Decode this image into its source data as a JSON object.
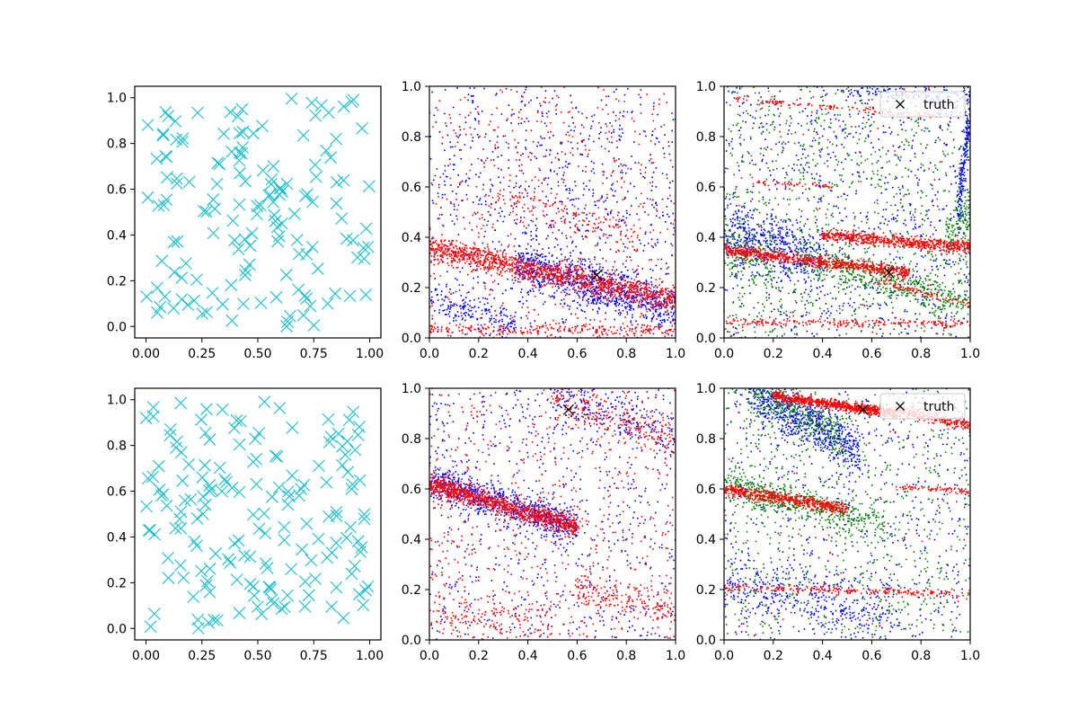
{
  "chart_data": [
    {
      "type": "scatter",
      "row": 0,
      "col": 0,
      "xlim": [
        -0.05,
        1.05
      ],
      "ylim": [
        -0.05,
        1.05
      ],
      "xticks": [
        "0.00",
        "0.25",
        "0.50",
        "0.75",
        "1.00"
      ],
      "yticks": [
        "0.0",
        "0.2",
        "0.4",
        "0.6",
        "0.8",
        "1.0"
      ],
      "xtick_values": [
        0,
        0.25,
        0.5,
        0.75,
        1.0
      ],
      "ytick_values": [
        0,
        0.2,
        0.4,
        0.6,
        0.8,
        1.0
      ],
      "series": [
        {
          "marker": "x",
          "color": "#17becf",
          "random_uniform": true,
          "count": 150,
          "seed": 11
        }
      ]
    },
    {
      "type": "scatter",
      "row": 0,
      "col": 1,
      "xlim": [
        0,
        1
      ],
      "ylim": [
        0,
        1
      ],
      "xticks": [
        "0.0",
        "0.2",
        "0.4",
        "0.6",
        "0.8",
        "1.0"
      ],
      "yticks": [
        "0.0",
        "0.2",
        "0.4",
        "0.6",
        "0.8",
        "1.0"
      ],
      "xtick_values": [
        0,
        0.2,
        0.4,
        0.6,
        0.8,
        1.0
      ],
      "ytick_values": [
        0,
        0.2,
        0.4,
        0.6,
        0.8,
        1.0
      ],
      "truth": {
        "x": 0.68,
        "y": 0.25,
        "label": ""
      },
      "series": [
        {
          "marker": "dot",
          "color": "#0000ff",
          "seed": 21,
          "background": 700,
          "bands": [
            {
              "x0": 0.35,
              "x1": 1.0,
              "y0": 0.3,
              "y1": 0.12,
              "width": 0.045,
              "count": 900
            },
            {
              "x0": 0.0,
              "x1": 0.35,
              "y0": 0.17,
              "y1": 0.04,
              "width": 0.035,
              "count": 180
            },
            {
              "x0": 0.0,
              "x1": 1.0,
              "y0": 0.6,
              "y1": 0.55,
              "width": 0.12,
              "count": 150
            }
          ]
        },
        {
          "marker": "dot",
          "color": "#ff0000",
          "seed": 22,
          "background": 500,
          "bands": [
            {
              "x0": 0.0,
              "x1": 1.0,
              "y0": 0.36,
              "y1": 0.15,
              "width": 0.025,
              "count": 1300
            },
            {
              "x0": 0.0,
              "x1": 1.0,
              "y0": 0.03,
              "y1": 0.03,
              "width": 0.012,
              "count": 250
            },
            {
              "x0": 0.25,
              "x1": 0.85,
              "y0": 0.58,
              "y1": 0.4,
              "width": 0.04,
              "count": 150
            }
          ]
        }
      ]
    },
    {
      "type": "scatter",
      "row": 0,
      "col": 2,
      "xlim": [
        0,
        1
      ],
      "ylim": [
        0,
        1
      ],
      "xticks": [
        "0.0",
        "0.2",
        "0.4",
        "0.6",
        "0.8",
        "1.0"
      ],
      "yticks": [
        "0.0",
        "0.2",
        "0.4",
        "0.6",
        "0.8",
        "1.0"
      ],
      "xtick_values": [
        0,
        0.2,
        0.4,
        0.6,
        0.8,
        1.0
      ],
      "ytick_values": [
        0,
        0.2,
        0.4,
        0.6,
        0.8,
        1.0
      ],
      "legend": {
        "label": "truth",
        "position": "top-right"
      },
      "truth": {
        "x": 0.67,
        "y": 0.26,
        "label": "truth"
      },
      "series": [
        {
          "marker": "dot",
          "color": "#0000ff",
          "seed": 31,
          "background": 900,
          "bands": [
            {
              "x0": 0.0,
              "x1": 0.4,
              "y0": 0.42,
              "y1": 0.3,
              "width": 0.06,
              "count": 450
            },
            {
              "x0": 0.5,
              "x1": 1.0,
              "y0": 0.99,
              "y1": 0.95,
              "width": 0.02,
              "count": 120
            },
            {
              "x0": 0.95,
              "x1": 1.0,
              "y0": 0.5,
              "y1": 0.9,
              "width": 0.05,
              "count": 200
            }
          ]
        },
        {
          "marker": "dot",
          "color": "#008000",
          "seed": 32,
          "background": 900,
          "bands": [
            {
              "x0": 0.3,
              "x1": 1.0,
              "y0": 0.32,
              "y1": 0.14,
              "width": 0.035,
              "count": 450
            },
            {
              "x0": 0.0,
              "x1": 0.2,
              "y0": 0.35,
              "y1": 0.3,
              "width": 0.05,
              "count": 150
            },
            {
              "x0": 0.9,
              "x1": 1.0,
              "y0": 0.38,
              "y1": 0.5,
              "width": 0.06,
              "count": 120
            }
          ]
        },
        {
          "marker": "dot",
          "color": "#ff0000",
          "seed": 33,
          "background": 60,
          "bands": [
            {
              "x0": 0.0,
              "x1": 0.75,
              "y0": 0.35,
              "y1": 0.26,
              "width": 0.012,
              "count": 750
            },
            {
              "x0": 0.4,
              "x1": 1.0,
              "y0": 0.41,
              "y1": 0.36,
              "width": 0.012,
              "count": 650
            },
            {
              "x0": 0.0,
              "x1": 1.0,
              "y0": 0.065,
              "y1": 0.055,
              "width": 0.008,
              "count": 220
            },
            {
              "x0": 0.05,
              "x1": 0.9,
              "y0": 0.95,
              "y1": 0.88,
              "width": 0.006,
              "count": 120
            },
            {
              "x0": 0.1,
              "x1": 0.45,
              "y0": 0.62,
              "y1": 0.6,
              "width": 0.005,
              "count": 50
            },
            {
              "x0": 0.6,
              "x1": 1.0,
              "y0": 0.23,
              "y1": 0.13,
              "width": 0.008,
              "count": 90
            }
          ]
        }
      ]
    },
    {
      "type": "scatter",
      "row": 1,
      "col": 0,
      "xlim": [
        -0.05,
        1.05
      ],
      "ylim": [
        -0.05,
        1.05
      ],
      "xticks": [
        "0.00",
        "0.25",
        "0.50",
        "0.75",
        "1.00"
      ],
      "yticks": [
        "0.0",
        "0.2",
        "0.4",
        "0.6",
        "0.8",
        "1.0"
      ],
      "xtick_values": [
        0,
        0.25,
        0.5,
        0.75,
        1.0
      ],
      "ytick_values": [
        0,
        0.2,
        0.4,
        0.6,
        0.8,
        1.0
      ],
      "series": [
        {
          "marker": "x",
          "color": "#17becf",
          "random_uniform": true,
          "count": 170,
          "seed": 41
        }
      ]
    },
    {
      "type": "scatter",
      "row": 1,
      "col": 1,
      "xlim": [
        0,
        1
      ],
      "ylim": [
        0,
        1
      ],
      "xticks": [
        "0.0",
        "0.2",
        "0.4",
        "0.6",
        "0.8",
        "1.0"
      ],
      "yticks": [
        "0.0",
        "0.2",
        "0.4",
        "0.6",
        "0.8",
        "1.0"
      ],
      "xtick_values": [
        0,
        0.2,
        0.4,
        0.6,
        0.8,
        1.0
      ],
      "ytick_values": [
        0,
        0.2,
        0.4,
        0.6,
        0.8,
        1.0
      ],
      "truth": {
        "x": 0.565,
        "y": 0.915,
        "label": ""
      },
      "series": [
        {
          "marker": "dot",
          "color": "#0000ff",
          "seed": 51,
          "background": 700,
          "bands": [
            {
              "x0": 0.0,
              "x1": 0.6,
              "y0": 0.63,
              "y1": 0.45,
              "width": 0.035,
              "count": 800
            },
            {
              "x0": 0.5,
              "x1": 1.0,
              "y0": 0.98,
              "y1": 0.8,
              "width": 0.05,
              "count": 220
            }
          ]
        },
        {
          "marker": "dot",
          "color": "#ff0000",
          "seed": 52,
          "background": 600,
          "bands": [
            {
              "x0": 0.0,
              "x1": 0.6,
              "y0": 0.62,
              "y1": 0.45,
              "width": 0.02,
              "count": 1000
            },
            {
              "x0": 0.5,
              "x1": 1.0,
              "y0": 0.96,
              "y1": 0.8,
              "width": 0.04,
              "count": 220
            },
            {
              "x0": 0.6,
              "x1": 1.0,
              "y0": 0.2,
              "y1": 0.12,
              "width": 0.04,
              "count": 180
            },
            {
              "x0": 0.0,
              "x1": 0.5,
              "y0": 0.1,
              "y1": 0.06,
              "width": 0.05,
              "count": 150
            }
          ]
        }
      ]
    },
    {
      "type": "scatter",
      "row": 1,
      "col": 2,
      "xlim": [
        0,
        1
      ],
      "ylim": [
        0,
        1
      ],
      "xticks": [
        "0.0",
        "0.2",
        "0.4",
        "0.6",
        "0.8",
        "1.0"
      ],
      "yticks": [
        "0.0",
        "0.2",
        "0.4",
        "0.6",
        "0.8",
        "1.0"
      ],
      "xtick_values": [
        0,
        0.2,
        0.4,
        0.6,
        0.8,
        1.0
      ],
      "ytick_values": [
        0,
        0.2,
        0.4,
        0.6,
        0.8,
        1.0
      ],
      "legend": {
        "label": "truth",
        "position": "top-right"
      },
      "truth": {
        "x": 0.565,
        "y": 0.915,
        "label": "truth"
      },
      "series": [
        {
          "marker": "dot",
          "color": "#0000ff",
          "seed": 61,
          "background": 650,
          "bands": [
            {
              "x0": 0.1,
              "x1": 0.55,
              "y0": 1.0,
              "y1": 0.75,
              "width": 0.05,
              "count": 700
            },
            {
              "x0": 0.0,
              "x1": 0.7,
              "y0": 0.22,
              "y1": 0.1,
              "width": 0.06,
              "count": 350
            }
          ]
        },
        {
          "marker": "dot",
          "color": "#008000",
          "seed": 62,
          "background": 700,
          "bands": [
            {
              "x0": 0.0,
              "x1": 0.65,
              "y0": 0.61,
              "y1": 0.46,
              "width": 0.035,
              "count": 500
            },
            {
              "x0": 0.1,
              "x1": 0.5,
              "y0": 1.0,
              "y1": 0.8,
              "width": 0.05,
              "count": 350
            }
          ]
        },
        {
          "marker": "dot",
          "color": "#ff0000",
          "seed": 63,
          "background": 60,
          "bands": [
            {
              "x0": 0.2,
              "x1": 0.7,
              "y0": 0.97,
              "y1": 0.9,
              "width": 0.01,
              "count": 750
            },
            {
              "x0": 0.0,
              "x1": 0.5,
              "y0": 0.6,
              "y1": 0.52,
              "width": 0.012,
              "count": 550
            },
            {
              "x0": 0.0,
              "x1": 1.0,
              "y0": 0.21,
              "y1": 0.18,
              "width": 0.008,
              "count": 220
            },
            {
              "x0": 0.7,
              "x1": 1.0,
              "y0": 0.91,
              "y1": 0.85,
              "width": 0.012,
              "count": 220
            },
            {
              "x0": 0.7,
              "x1": 1.0,
              "y0": 0.61,
              "y1": 0.59,
              "width": 0.006,
              "count": 70
            }
          ]
        }
      ]
    }
  ]
}
